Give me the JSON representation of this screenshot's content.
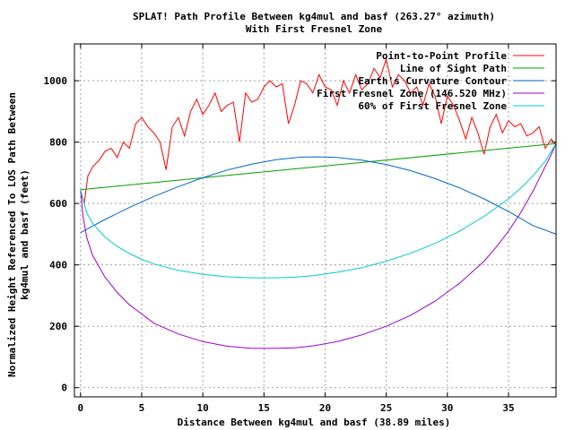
{
  "chart_data": {
    "type": "line",
    "title": "SPLAT! Path Profile Between kg4mul and basf (263.27° azimuth)",
    "subtitle": "With First Fresnel Zone",
    "xlabel": "Distance Between kg4mul and basf (38.89 miles)",
    "ylabel": "Normalized Height Referenced To LOS Path Between",
    "ylabel2": "kg4mul and basf (feet)",
    "xlim": [
      -0.5,
      38.89
    ],
    "ylim": [
      -30,
      1120
    ],
    "xticks": [
      0,
      5,
      10,
      15,
      20,
      25,
      30,
      35
    ],
    "yticks": [
      0,
      200,
      400,
      600,
      800,
      1000
    ],
    "grid": true,
    "legend_position": "top-right",
    "series": [
      {
        "name": "Point-to-Point Profile",
        "color": "#ff0000",
        "x": [
          0,
          0.3,
          0.6,
          1.0,
          1.5,
          2.0,
          2.5,
          3.0,
          3.5,
          4.0,
          4.5,
          5.0,
          5.5,
          6.0,
          6.5,
          7.0,
          7.5,
          8.0,
          8.5,
          9.0,
          9.5,
          10.0,
          10.5,
          11.0,
          11.5,
          12.0,
          12.5,
          13.0,
          13.5,
          14.0,
          14.5,
          15.0,
          15.5,
          16.0,
          16.5,
          17.0,
          17.5,
          18.0,
          18.5,
          19.0,
          19.5,
          20.0,
          20.5,
          21.0,
          21.5,
          22.0,
          22.5,
          23.0,
          23.5,
          24.0,
          24.5,
          25.0,
          25.5,
          26.0,
          26.5,
          27.0,
          27.5,
          28.0,
          28.5,
          29.0,
          29.5,
          30.0,
          30.5,
          31.0,
          31.5,
          32.0,
          32.5,
          33.0,
          33.5,
          34.0,
          34.5,
          35.0,
          35.5,
          36.0,
          36.5,
          37.0,
          37.5,
          38.0,
          38.5,
          38.89
        ],
        "y": [
          640,
          600,
          690,
          720,
          740,
          770,
          780,
          750,
          800,
          780,
          860,
          880,
          850,
          830,
          800,
          710,
          850,
          880,
          820,
          900,
          940,
          890,
          920,
          960,
          900,
          920,
          930,
          800,
          960,
          930,
          940,
          980,
          1000,
          980,
          990,
          860,
          920,
          1000,
          990,
          960,
          1020,
          980,
          970,
          920,
          1000,
          960,
          1020,
          970,
          990,
          1040,
          1010,
          1070,
          980,
          1020,
          1000,
          960,
          980,
          920,
          990,
          950,
          860,
          950,
          920,
          870,
          810,
          880,
          830,
          760,
          850,
          890,
          830,
          870,
          850,
          860,
          820,
          830,
          850,
          780,
          810,
          790
        ]
      },
      {
        "name": "Line of Sight Path",
        "color": "#00a000",
        "x": [
          0,
          38.89
        ],
        "y": [
          645,
          795
        ]
      },
      {
        "name": "Earth's Curvature Contour",
        "color": "#0066cc",
        "x": [
          0,
          2,
          4,
          6,
          8,
          10,
          12,
          14,
          16,
          18,
          19.4,
          21,
          23,
          25,
          27,
          29,
          31,
          33,
          35,
          37,
          38.89
        ],
        "y": [
          505,
          548,
          587,
          623,
          655,
          684,
          709,
          728,
          743,
          751,
          752,
          750,
          741,
          727,
          707,
          681,
          651,
          615,
          574,
          528,
          500
        ]
      },
      {
        "name": "First Fresnel Zone (146.520 MHz)",
        "color": "#9900cc",
        "x": [
          0,
          0.2,
          0.5,
          1,
          2,
          3,
          4,
          5,
          6,
          8,
          10,
          12,
          14,
          16,
          17.5,
          19,
          21,
          23,
          25,
          27,
          29,
          31,
          33,
          34,
          35,
          36,
          37,
          37.5,
          38,
          38.5,
          38.89
        ],
        "y": [
          645,
          560,
          490,
          430,
          360,
          310,
          270,
          240,
          210,
          175,
          150,
          135,
          128,
          128,
          130,
          136,
          150,
          172,
          200,
          236,
          282,
          340,
          412,
          458,
          510,
          570,
          640,
          680,
          720,
          760,
          795
        ]
      },
      {
        "name": "60% of First Fresnel Zone",
        "color": "#00cccc",
        "x": [
          0,
          0.5,
          1,
          2,
          3,
          4,
          5,
          6,
          8,
          10,
          12,
          14,
          16,
          17.5,
          19,
          21,
          23,
          25,
          27,
          29,
          31,
          33,
          35,
          36,
          37,
          38,
          38.89
        ],
        "y": [
          645,
          570,
          535,
          490,
          460,
          437,
          418,
          403,
          382,
          369,
          361,
          358,
          358,
          360,
          365,
          376,
          391,
          412,
          438,
          470,
          510,
          558,
          615,
          650,
          690,
          738,
          795
        ]
      }
    ]
  }
}
